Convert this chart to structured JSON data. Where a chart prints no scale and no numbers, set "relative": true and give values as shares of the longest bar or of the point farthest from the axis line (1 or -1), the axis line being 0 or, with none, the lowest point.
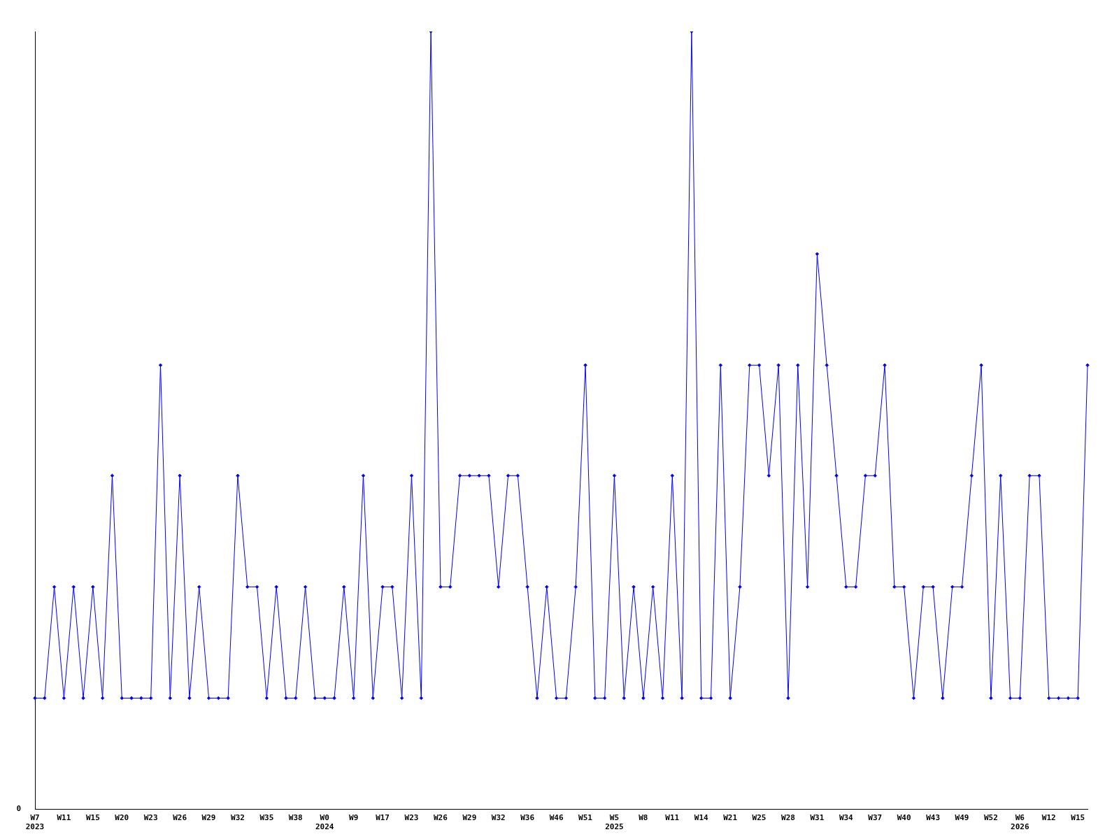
{
  "chart_data": {
    "type": "line",
    "relative": true,
    "categories": [
      "W7\n2023",
      null,
      null,
      "W11",
      null,
      null,
      "W15",
      null,
      null,
      "W20",
      null,
      null,
      "W23",
      null,
      null,
      "W26",
      null,
      null,
      "W29",
      null,
      null,
      "W32",
      null,
      null,
      "W35",
      null,
      null,
      "W38",
      null,
      null,
      "W0\n2024",
      null,
      null,
      "W9",
      null,
      null,
      "W17",
      null,
      null,
      "W23",
      null,
      null,
      "W26",
      null,
      null,
      "W29",
      null,
      null,
      "W32",
      null,
      null,
      "W36",
      null,
      null,
      "W46",
      null,
      null,
      "W51",
      null,
      null,
      "W5\n2025",
      null,
      null,
      "W8",
      null,
      null,
      "W11",
      null,
      null,
      "W14",
      null,
      null,
      "W21",
      null,
      null,
      "W25",
      null,
      null,
      "W28",
      null,
      null,
      "W31",
      null,
      null,
      "W34",
      null,
      null,
      "W37",
      null,
      null,
      "W40",
      null,
      null,
      "W43",
      null,
      null,
      "W49",
      null,
      null,
      "W52",
      null,
      null,
      "W6\n2026",
      null,
      null,
      "W12",
      null,
      null,
      "W15",
      null
    ],
    "series": [
      {
        "color": "#0000ff",
        "values": [
          0.143,
          0.143,
          0.286,
          0.143,
          0.286,
          0.143,
          0.286,
          0.143,
          0.429,
          0.143,
          0.143,
          0.143,
          0.143,
          0.571,
          0.143,
          0.429,
          0.143,
          0.286,
          0.143,
          0.143,
          0.143,
          0.429,
          0.286,
          0.286,
          0.143,
          0.286,
          0.143,
          0.143,
          0.286,
          0.143,
          0.143,
          0.143,
          0.286,
          0.143,
          0.429,
          0.143,
          0.286,
          0.286,
          0.143,
          0.429,
          0.143,
          1,
          0.286,
          0.286,
          0.429,
          0.429,
          0.429,
          0.429,
          0.286,
          0.429,
          0.429,
          0.286,
          0.143,
          0.286,
          0.143,
          0.143,
          0.286,
          0.571,
          0.143,
          0.143,
          0.429,
          0.143,
          0.286,
          0.143,
          0.286,
          0.143,
          0.429,
          0.143,
          1,
          0.143,
          0.143,
          0.571,
          0.143,
          0.286,
          0.571,
          0.571,
          0.429,
          0.571,
          0.143,
          0.571,
          0.286,
          0.714,
          0.571,
          0.429,
          0.286,
          0.286,
          0.429,
          0.429,
          0.571,
          0.286,
          0.286,
          0.143,
          0.286,
          0.286,
          0.143,
          0.286,
          0.286,
          0.429,
          0.571,
          0.143,
          0.429,
          0.143,
          0.143,
          0.429,
          0.429,
          0.143,
          0.143,
          0.143,
          0.143,
          0.571
        ]
      }
    ],
    "annotations": [
      "0"
    ],
    "marker": "diamond",
    "line_style": "solid",
    "grid": false,
    "legend": false
  }
}
